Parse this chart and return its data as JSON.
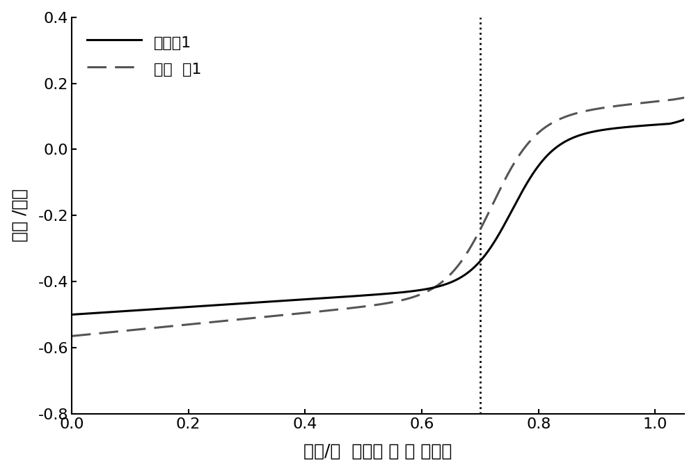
{
  "title": "",
  "xlabel": "电压/伏  相对于 标 准 氢电极",
  "ylabel": "电流 /毫安",
  "xlim": [
    0.0,
    1.05
  ],
  "ylim": [
    -0.8,
    0.4
  ],
  "xticks": [
    0.0,
    0.2,
    0.4,
    0.6,
    0.8,
    1.0
  ],
  "yticks": [
    -0.8,
    -0.6,
    -0.4,
    -0.2,
    0.0,
    0.2,
    0.4
  ],
  "vline_x": 0.7,
  "legend": [
    "实施例1",
    "对比  例1"
  ],
  "line1_color": "#000000",
  "line2_color": "#555555",
  "background_color": "#ffffff",
  "xlabel_fontsize": 18,
  "ylabel_fontsize": 18,
  "tick_fontsize": 16,
  "legend_fontsize": 16
}
